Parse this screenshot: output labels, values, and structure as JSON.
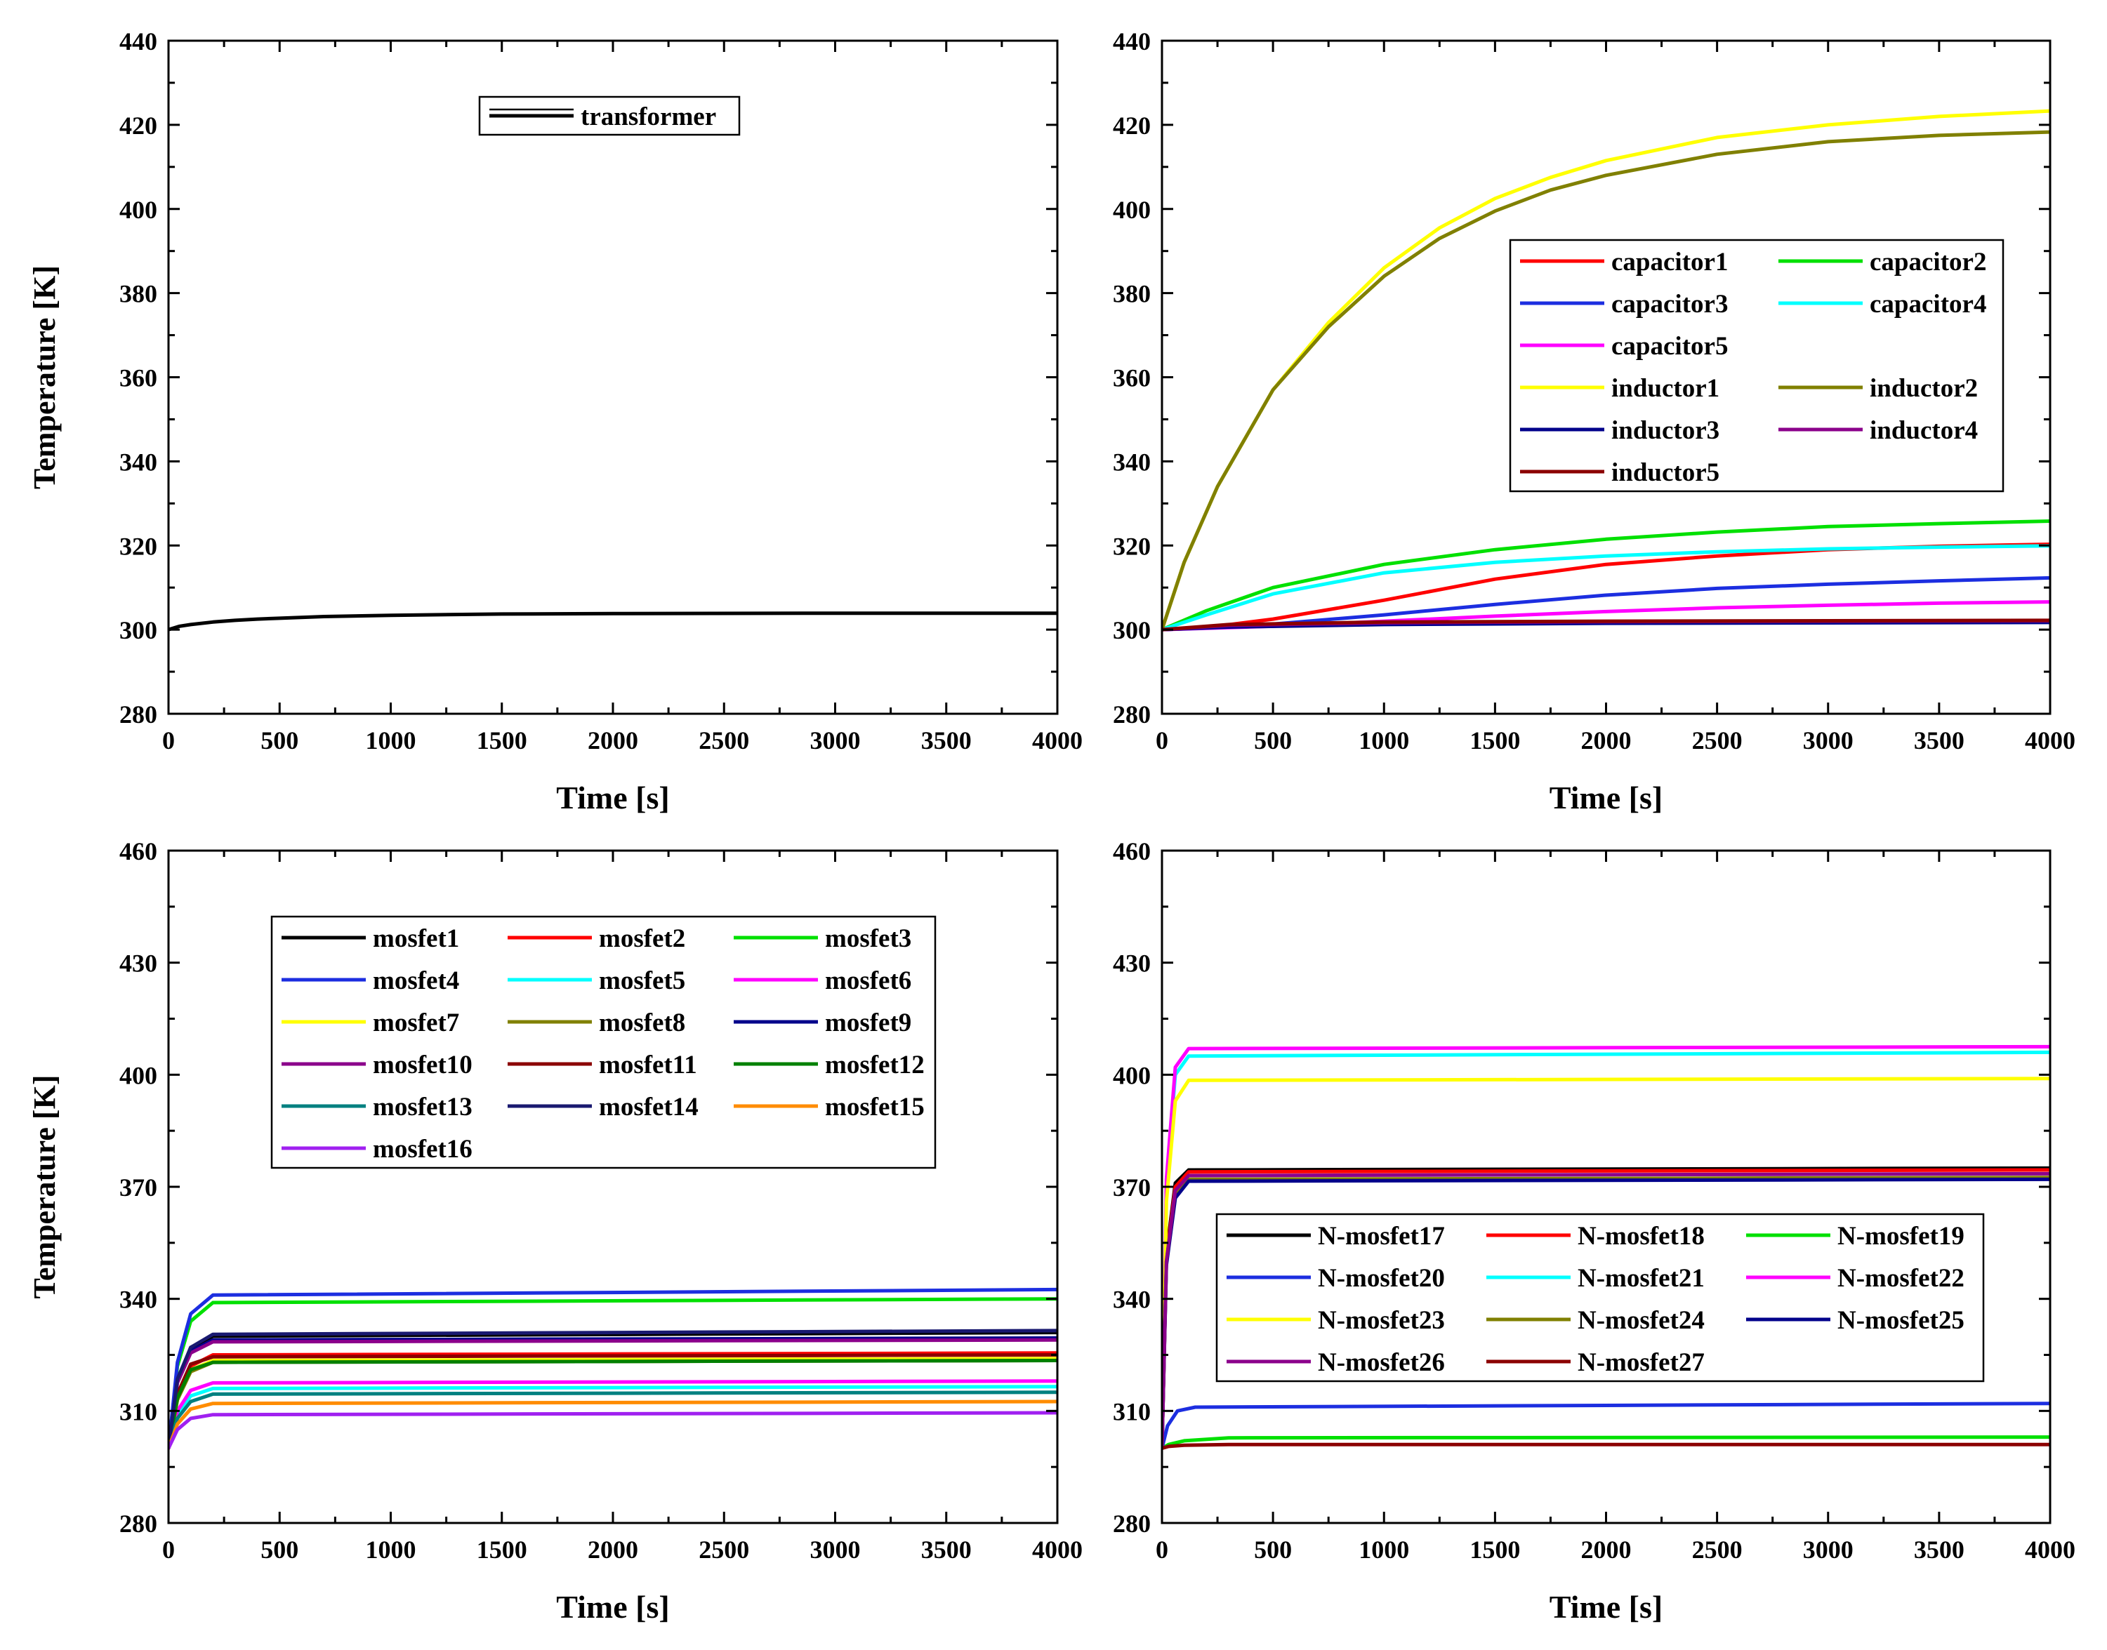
{
  "chart_data": [
    {
      "type": "line",
      "id": "transformer",
      "xlabel": "Time [s]",
      "ylabel": "Temperature [K]",
      "xlim": [
        0,
        4000
      ],
      "ylim": [
        280,
        440
      ],
      "xticks": [
        0,
        500,
        1000,
        1500,
        2000,
        2500,
        3000,
        3500,
        4000
      ],
      "yticks": [
        280,
        300,
        320,
        340,
        360,
        380,
        400,
        420,
        440
      ],
      "legend_position": "top-center",
      "legend_columns": 1,
      "series": [
        {
          "name": "transformer",
          "color": "#000000",
          "x": [
            0,
            50,
            100,
            200,
            300,
            400,
            500,
            700,
            1000,
            1500,
            2000,
            3000,
            4000
          ],
          "y": [
            300,
            300.8,
            301.2,
            301.8,
            302.2,
            302.5,
            302.7,
            303.1,
            303.4,
            303.7,
            303.8,
            303.9,
            303.9
          ]
        }
      ]
    },
    {
      "type": "line",
      "id": "passives",
      "xlabel": "Time [s]",
      "ylabel": "",
      "xlim": [
        0,
        4000
      ],
      "ylim": [
        280,
        440
      ],
      "xticks": [
        0,
        500,
        1000,
        1500,
        2000,
        2500,
        3000,
        3500,
        4000
      ],
      "yticks": [
        280,
        300,
        320,
        340,
        360,
        380,
        400,
        420,
        440
      ],
      "legend_position": "center-right",
      "legend_columns": 2,
      "series": [
        {
          "name": "capacitor1",
          "color": "#ff0000",
          "x": [
            0,
            200,
            500,
            1000,
            1500,
            2000,
            2500,
            3000,
            3500,
            4000
          ],
          "y": [
            300,
            300.5,
            302.5,
            307,
            312,
            315.5,
            317.5,
            319,
            319.8,
            320.3
          ]
        },
        {
          "name": "capacitor2",
          "color": "#00e000",
          "x": [
            0,
            200,
            500,
            1000,
            1500,
            2000,
            2500,
            3000,
            3500,
            4000
          ],
          "y": [
            300,
            304.5,
            310,
            315.5,
            319,
            321.5,
            323.2,
            324.5,
            325.2,
            325.8
          ]
        },
        {
          "name": "capacitor3",
          "color": "#1c2ee0",
          "x": [
            0,
            300,
            500,
            1000,
            1500,
            2000,
            2500,
            3000,
            3500,
            4000
          ],
          "y": [
            300,
            300.6,
            301.3,
            303.5,
            306,
            308.2,
            309.8,
            310.8,
            311.6,
            312.3
          ]
        },
        {
          "name": "capacitor4",
          "color": "#00ffff",
          "x": [
            0,
            200,
            500,
            1000,
            1500,
            2000,
            2500,
            3000,
            3500,
            4000
          ],
          "y": [
            300,
            303.5,
            308.5,
            313.5,
            316,
            317.5,
            318.5,
            319.2,
            319.6,
            319.9
          ]
        },
        {
          "name": "capacitor5",
          "color": "#ff00ff",
          "x": [
            0,
            500,
            1000,
            1500,
            2000,
            2500,
            3000,
            3500,
            4000
          ],
          "y": [
            300,
            300.8,
            302,
            303.2,
            304.3,
            305.2,
            305.8,
            306.3,
            306.6
          ]
        },
        {
          "name": "inductor1",
          "color": "#ffff00",
          "x": [
            0,
            100,
            250,
            500,
            750,
            1000,
            1250,
            1500,
            1750,
            2000,
            2500,
            3000,
            3500,
            4000
          ],
          "y": [
            300,
            316,
            334,
            357,
            373,
            386,
            395.5,
            402.5,
            407.5,
            411.5,
            417,
            420,
            422,
            423.3
          ]
        },
        {
          "name": "inductor2",
          "color": "#808000",
          "x": [
            0,
            100,
            250,
            500,
            750,
            1000,
            1250,
            1500,
            1750,
            2000,
            2500,
            3000,
            3500,
            4000
          ],
          "y": [
            300,
            316,
            334,
            357,
            372,
            384,
            393,
            399.5,
            404.5,
            408,
            413,
            416,
            417.5,
            418.3
          ]
        },
        {
          "name": "inductor3",
          "color": "#00008b",
          "x": [
            0,
            300,
            1000,
            2000,
            3000,
            4000
          ],
          "y": [
            300,
            300.6,
            301.2,
            301.5,
            301.6,
            301.7
          ]
        },
        {
          "name": "inductor4",
          "color": "#8b008b",
          "x": [
            0,
            300,
            1000,
            2000,
            3000,
            4000
          ],
          "y": [
            300,
            301,
            301.6,
            301.9,
            302,
            302.1
          ]
        },
        {
          "name": "inductor5",
          "color": "#8b0000",
          "x": [
            0,
            300,
            1000,
            2000,
            3000,
            4000
          ],
          "y": [
            300,
            301.2,
            301.8,
            302,
            302.1,
            302.2
          ]
        }
      ]
    },
    {
      "type": "line",
      "id": "mosfets",
      "xlabel": "Time [s]",
      "ylabel": "Temperature [K]",
      "xlim": [
        0,
        4000
      ],
      "ylim": [
        280,
        460
      ],
      "xticks": [
        0,
        500,
        1000,
        1500,
        2000,
        2500,
        3000,
        3500,
        4000
      ],
      "yticks": [
        280,
        310,
        340,
        370,
        400,
        430,
        460
      ],
      "legend_position": "top-center",
      "legend_columns": 3,
      "series": [
        {
          "name": "mosfet1",
          "color": "#000000",
          "x": [
            0,
            40,
            100,
            200,
            4000
          ],
          "y": [
            300,
            318,
            327,
            330,
            331
          ]
        },
        {
          "name": "mosfet2",
          "color": "#ff0000",
          "x": [
            0,
            40,
            100,
            200,
            4000
          ],
          "y": [
            300,
            314,
            322,
            325,
            325.5
          ]
        },
        {
          "name": "mosfet3",
          "color": "#00e000",
          "x": [
            0,
            40,
            100,
            200,
            4000
          ],
          "y": [
            300,
            322,
            334,
            339,
            340
          ]
        },
        {
          "name": "mosfet4",
          "color": "#1c2ee0",
          "x": [
            0,
            40,
            100,
            200,
            4000
          ],
          "y": [
            300,
            323,
            336,
            341,
            342.5
          ]
        },
        {
          "name": "mosfet5",
          "color": "#00ffff",
          "x": [
            0,
            40,
            100,
            200,
            4000
          ],
          "y": [
            300,
            309,
            314,
            316,
            316.5
          ]
        },
        {
          "name": "mosfet6",
          "color": "#ff00ff",
          "x": [
            0,
            40,
            100,
            200,
            4000
          ],
          "y": [
            300,
            310,
            315.5,
            317.5,
            318
          ]
        },
        {
          "name": "mosfet7",
          "color": "#ffff00",
          "x": [
            0,
            40,
            100,
            200,
            4000
          ],
          "y": [
            300,
            313,
            321,
            323.5,
            324
          ]
        },
        {
          "name": "mosfet8",
          "color": "#808000",
          "x": [
            0,
            40,
            100,
            200,
            4000
          ],
          "y": [
            300,
            313,
            320.5,
            323,
            323.5
          ]
        },
        {
          "name": "mosfet9",
          "color": "#00008b",
          "x": [
            0,
            40,
            100,
            200,
            4000
          ],
          "y": [
            300,
            318,
            326,
            329,
            329.5
          ]
        },
        {
          "name": "mosfet10",
          "color": "#8b008b",
          "x": [
            0,
            40,
            100,
            200,
            4000
          ],
          "y": [
            300,
            317.5,
            325.5,
            328.5,
            329
          ]
        },
        {
          "name": "mosfet11",
          "color": "#8b0000",
          "x": [
            0,
            40,
            100,
            200,
            4000
          ],
          "y": [
            300,
            314.5,
            322.5,
            324.5,
            325
          ]
        },
        {
          "name": "mosfet12",
          "color": "#008000",
          "x": [
            0,
            40,
            100,
            200,
            4000
          ],
          "y": [
            300,
            313.5,
            321,
            323,
            323.5
          ]
        },
        {
          "name": "mosfet13",
          "color": "#008080",
          "x": [
            0,
            40,
            100,
            200,
            4000
          ],
          "y": [
            300,
            308,
            312.5,
            314.5,
            315
          ]
        },
        {
          "name": "mosfet14",
          "color": "#191970",
          "x": [
            0,
            40,
            100,
            200,
            4000
          ],
          "y": [
            300,
            318.5,
            327,
            330.5,
            331.5
          ]
        },
        {
          "name": "mosfet15",
          "color": "#ff8c00",
          "x": [
            0,
            40,
            100,
            200,
            4000
          ],
          "y": [
            300,
            306.5,
            310.5,
            312,
            312.5
          ]
        },
        {
          "name": "mosfet16",
          "color": "#a020f0",
          "x": [
            0,
            40,
            100,
            200,
            4000
          ],
          "y": [
            300,
            305,
            308,
            309,
            309.5
          ]
        }
      ]
    },
    {
      "type": "line",
      "id": "n-mosfets",
      "xlabel": "Time [s]",
      "ylabel": "",
      "xlim": [
        0,
        4000
      ],
      "ylim": [
        280,
        460
      ],
      "xticks": [
        0,
        500,
        1000,
        1500,
        2000,
        2500,
        3000,
        3500,
        4000
      ],
      "yticks": [
        280,
        310,
        340,
        370,
        400,
        430,
        460
      ],
      "legend_position": "center-right",
      "legend_columns": 3,
      "series": [
        {
          "name": "N-mosfet17",
          "color": "#000000",
          "x": [
            0,
            20,
            60,
            120,
            4000
          ],
          "y": [
            300,
            352,
            371,
            374.5,
            375
          ]
        },
        {
          "name": "N-mosfet18",
          "color": "#ff0000",
          "x": [
            0,
            20,
            60,
            120,
            4000
          ],
          "y": [
            300,
            351,
            370,
            374,
            374.5
          ]
        },
        {
          "name": "N-mosfet19",
          "color": "#00e000",
          "x": [
            0,
            30,
            100,
            300,
            4000
          ],
          "y": [
            300,
            301,
            302,
            302.8,
            303
          ]
        },
        {
          "name": "N-mosfet20",
          "color": "#1c2ee0",
          "x": [
            0,
            25,
            70,
            150,
            4000
          ],
          "y": [
            300,
            306,
            310,
            311,
            312
          ]
        },
        {
          "name": "N-mosfet21",
          "color": "#00ffff",
          "x": [
            0,
            20,
            60,
            120,
            4000
          ],
          "y": [
            300,
            370,
            400,
            405,
            406
          ]
        },
        {
          "name": "N-mosfet22",
          "color": "#ff00ff",
          "x": [
            0,
            20,
            60,
            120,
            4000
          ],
          "y": [
            300,
            372,
            402,
            407,
            407.5
          ]
        },
        {
          "name": "N-mosfet23",
          "color": "#ffff00",
          "x": [
            0,
            20,
            60,
            120,
            4000
          ],
          "y": [
            300,
            366,
            393,
            398.5,
            399
          ]
        },
        {
          "name": "N-mosfet24",
          "color": "#808000",
          "x": [
            0,
            20,
            60,
            120,
            4000
          ],
          "y": [
            300,
            350,
            368,
            372,
            372.5
          ]
        },
        {
          "name": "N-mosfet25",
          "color": "#00008b",
          "x": [
            0,
            20,
            60,
            120,
            4000
          ],
          "y": [
            300,
            349,
            367,
            371.5,
            372
          ]
        },
        {
          "name": "N-mosfet26",
          "color": "#8b008b",
          "x": [
            0,
            20,
            60,
            120,
            4000
          ],
          "y": [
            300,
            350,
            369,
            373,
            373.5
          ]
        },
        {
          "name": "N-mosfet27",
          "color": "#8b0000",
          "x": [
            0,
            30,
            100,
            300,
            4000
          ],
          "y": [
            300,
            300.5,
            300.8,
            301,
            301
          ]
        }
      ]
    }
  ]
}
